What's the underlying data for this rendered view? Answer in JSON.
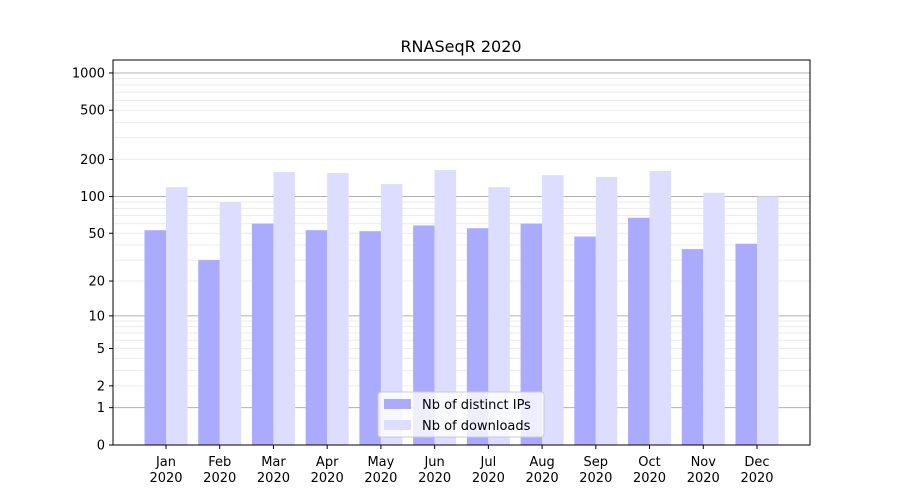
{
  "chart_data": {
    "type": "bar",
    "title": "RNASeqR 2020",
    "xlabel": "",
    "ylabel": "",
    "yscale": "log(1+y)",
    "ylim": [
      0,
      1300
    ],
    "yticks": [
      0,
      1,
      2,
      5,
      10,
      20,
      50,
      100,
      200,
      500,
      1000
    ],
    "grid": true,
    "legend_position": "bottom-center",
    "categories": [
      "Jan\n2020",
      "Feb\n2020",
      "Mar\n2020",
      "Apr\n2020",
      "May\n2020",
      "Jun\n2020",
      "Jul\n2020",
      "Aug\n2020",
      "Sep\n2020",
      "Oct\n2020",
      "Nov\n2020",
      "Dec\n2020"
    ],
    "series": [
      {
        "name": "Nb of distinct IPs",
        "color": "#aaaaff",
        "values": [
          53,
          30,
          60,
          53,
          52,
          58,
          55,
          60,
          47,
          67,
          37,
          41
        ]
      },
      {
        "name": "Nb of downloads",
        "color": "#ddddff",
        "values": [
          119,
          90,
          158,
          155,
          126,
          164,
          119,
          149,
          144,
          161,
          107,
          100
        ]
      }
    ]
  }
}
